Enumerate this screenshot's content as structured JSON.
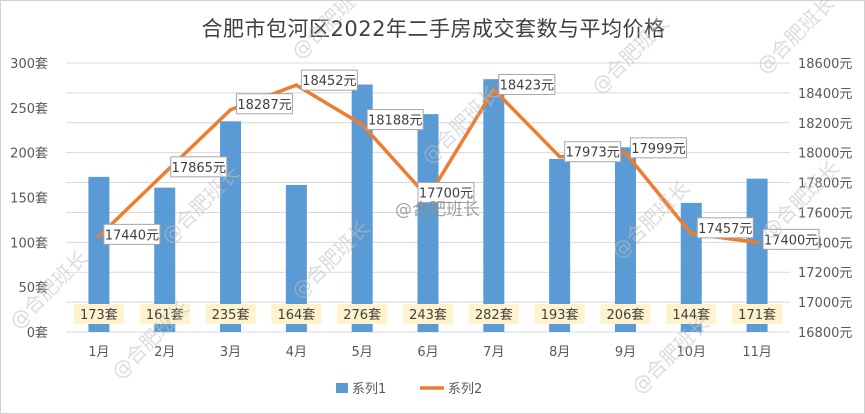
{
  "chart_data": {
    "type": "bar+line",
    "title": "合肥市包河区2022年二手房成交套数与平均价格",
    "categories": [
      "1月",
      "2月",
      "3月",
      "4月",
      "5月",
      "6月",
      "7月",
      "8月",
      "9月",
      "10月",
      "11月"
    ],
    "series": [
      {
        "name": "系列1",
        "type": "bar",
        "axis": "left",
        "color": "#5B9BD5",
        "values": [
          173,
          161,
          235,
          164,
          276,
          243,
          282,
          193,
          206,
          144,
          171
        ],
        "labels": [
          "173套",
          "161套",
          "235套",
          "164套",
          "276套",
          "243套",
          "282套",
          "193套",
          "206套",
          "144套",
          "171套"
        ]
      },
      {
        "name": "系列2",
        "type": "line",
        "axis": "right",
        "color": "#ED7D31",
        "values": [
          17440,
          17865,
          18287,
          18452,
          18188,
          17700,
          18423,
          17973,
          17999,
          17457,
          17400
        ],
        "labels": [
          "17440元",
          "17865元",
          "18287元",
          "18452元",
          "18188元",
          "17700元",
          "18423元",
          "17973元",
          "17999元",
          "17457元",
          "17400元"
        ]
      }
    ],
    "y_left": {
      "ylim": [
        0,
        300
      ],
      "ticks": [
        "0套",
        "50套",
        "100套",
        "150套",
        "200套",
        "250套",
        "300套"
      ]
    },
    "y_right": {
      "ylim": [
        16800,
        18600
      ],
      "ticks": [
        "16800元",
        "17000元",
        "17200元",
        "17400元",
        "17600元",
        "17800元",
        "18000元",
        "18200元",
        "18400元",
        "18600元"
      ]
    },
    "grid": true,
    "legend": "bottom"
  },
  "watermark": "@合肥班长",
  "colors": {
    "bar": "#5B9BD5",
    "line": "#ED7D31",
    "bar_label_bg": "#FFF2CC",
    "grid": "#D9D9D9"
  }
}
